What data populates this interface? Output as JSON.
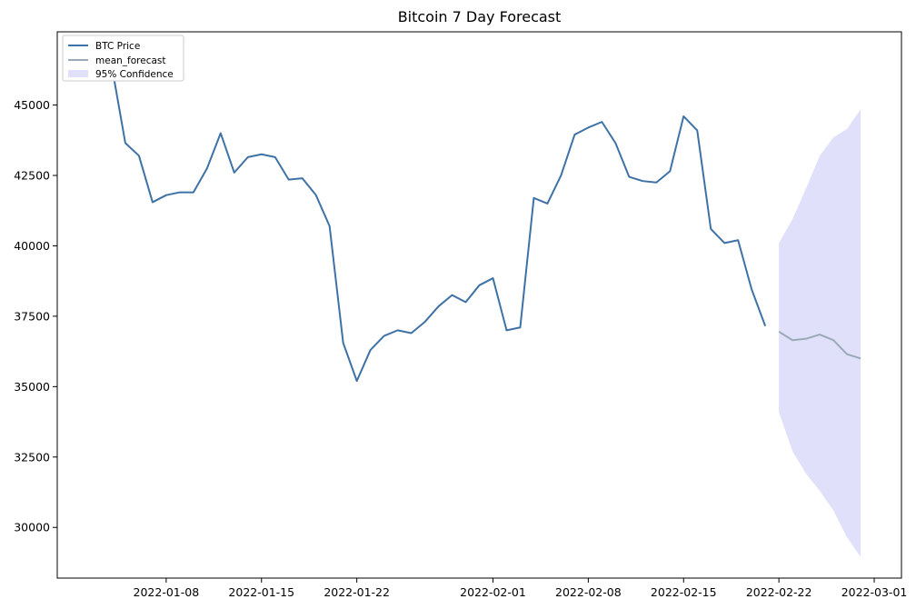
{
  "chart_data": {
    "type": "line",
    "title": "Bitcoin 7 Day Forecast",
    "xlabel": "",
    "ylabel": "",
    "grid": false,
    "legend_placement": "top-left",
    "x_range": [
      "2021-12-31",
      "2022-03-03"
    ],
    "ylim": [
      28200,
      47600
    ],
    "x_ticks": [
      "2022-01-08",
      "2022-01-15",
      "2022-01-22",
      "2022-02-01",
      "2022-02-08",
      "2022-02-15",
      "2022-02-22",
      "2022-03-01"
    ],
    "y_ticks": [
      30000,
      32500,
      35000,
      37500,
      40000,
      42500,
      45000
    ],
    "colors": {
      "price": "#3e72a6",
      "forecast": "#9aaab6",
      "confidence": "#e0e0fb"
    },
    "series": [
      {
        "name": "BTC Price",
        "kind": "line",
        "x": [
          "2022-01-04",
          "2022-01-05",
          "2022-01-06",
          "2022-01-07",
          "2022-01-08",
          "2022-01-09",
          "2022-01-10",
          "2022-01-11",
          "2022-01-12",
          "2022-01-13",
          "2022-01-14",
          "2022-01-15",
          "2022-01-16",
          "2022-01-17",
          "2022-01-18",
          "2022-01-19",
          "2022-01-20",
          "2022-01-21",
          "2022-01-22",
          "2022-01-23",
          "2022-01-24",
          "2022-01-25",
          "2022-01-26",
          "2022-01-27",
          "2022-01-28",
          "2022-01-29",
          "2022-01-30",
          "2022-01-31",
          "2022-02-01",
          "2022-02-02",
          "2022-02-03",
          "2022-02-04",
          "2022-02-05",
          "2022-02-06",
          "2022-02-07",
          "2022-02-08",
          "2022-02-09",
          "2022-02-10",
          "2022-02-11",
          "2022-02-12",
          "2022-02-13",
          "2022-02-14",
          "2022-02-15",
          "2022-02-16",
          "2022-02-17",
          "2022-02-18",
          "2022-02-19",
          "2022-02-20",
          "2022-02-21"
        ],
        "y": [
          46400,
          43650,
          43200,
          41550,
          41800,
          41900,
          41900,
          42750,
          44000,
          42600,
          43150,
          43250,
          43150,
          42350,
          42400,
          41800,
          40700,
          36550,
          35200,
          36300,
          36800,
          37000,
          36900,
          37300,
          37850,
          38250,
          38000,
          38600,
          38850,
          37000,
          37100,
          41700,
          41500,
          42500,
          43950,
          44200,
          44400,
          43650,
          42450,
          42300,
          42250,
          42650,
          44600,
          44100,
          40600,
          40100,
          40200,
          38450,
          37150
        ]
      },
      {
        "name": "mean_forecast",
        "kind": "line",
        "x": [
          "2022-02-22",
          "2022-02-23",
          "2022-02-24",
          "2022-02-25",
          "2022-02-26",
          "2022-02-27",
          "2022-02-28"
        ],
        "y": [
          36950,
          36650,
          36700,
          36850,
          36650,
          36150,
          36000
        ]
      },
      {
        "name": "95% Confidence",
        "kind": "band",
        "x": [
          "2022-02-22",
          "2022-02-23",
          "2022-02-24",
          "2022-02-25",
          "2022-02-26",
          "2022-02-27",
          "2022-02-28"
        ],
        "upper": [
          40100,
          40950,
          42050,
          43200,
          43850,
          44150,
          44850
        ],
        "lower": [
          34100,
          32700,
          31900,
          31300,
          30600,
          29650,
          28950
        ]
      }
    ]
  }
}
